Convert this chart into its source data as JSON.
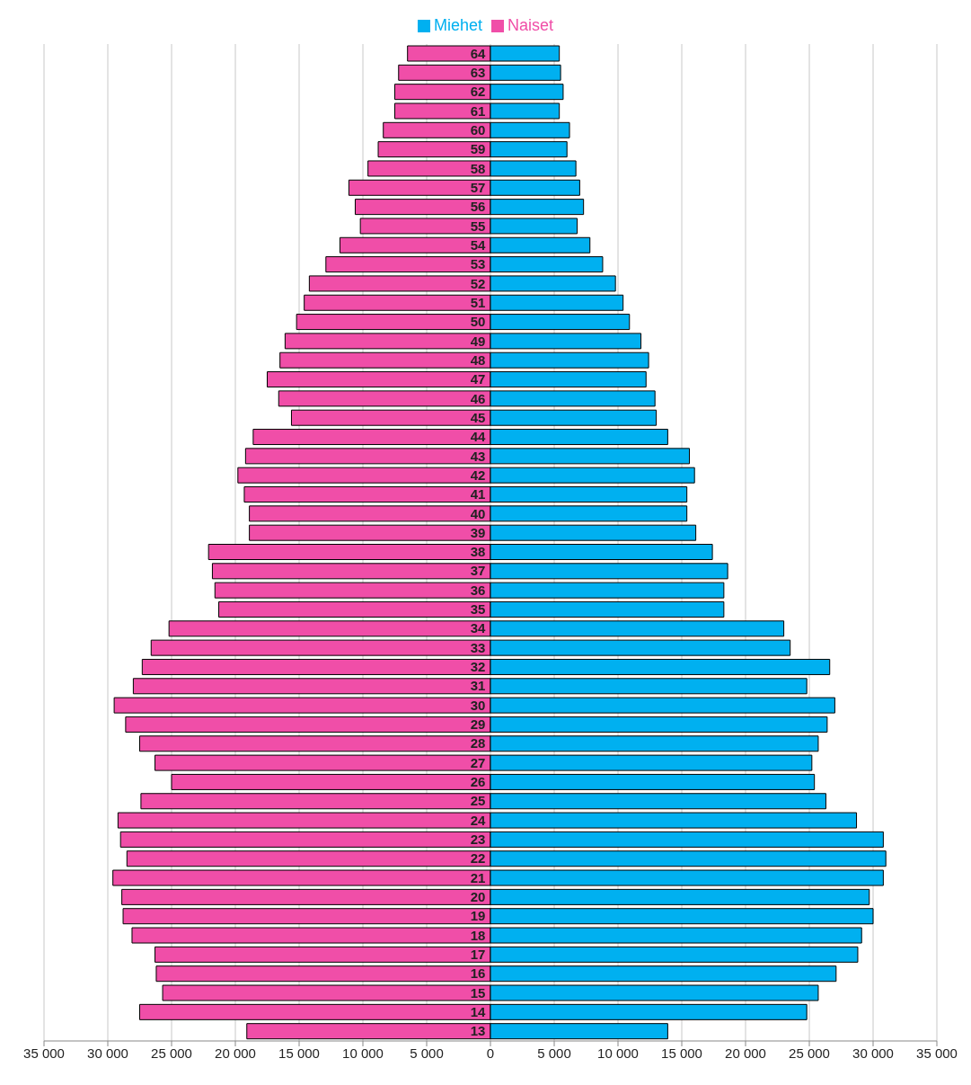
{
  "chart_data": {
    "type": "bar",
    "orientation": "horizontal",
    "stacked": true,
    "legend": "top",
    "grid": "x",
    "categories": [
      "64",
      "63",
      "62",
      "61",
      "60",
      "59",
      "58",
      "57",
      "56",
      "55",
      "54",
      "53",
      "52",
      "51",
      "50",
      "49",
      "48",
      "47",
      "46",
      "45",
      "44",
      "43",
      "42",
      "41",
      "40",
      "39",
      "38",
      "37",
      "36",
      "35",
      "34",
      "33",
      "32",
      "31",
      "30",
      "29",
      "28",
      "27",
      "26",
      "25",
      "24",
      "23",
      "22",
      "21",
      "20",
      "19",
      "18",
      "17",
      "16",
      "15",
      "14",
      "13"
    ],
    "series": [
      {
        "name": "Naiset",
        "color": "#f04ea8",
        "values": [
          -6500,
          -7200,
          -7500,
          -7500,
          -8400,
          -8800,
          -9600,
          -11100,
          -10600,
          -10200,
          -11800,
          -12900,
          -14200,
          -14600,
          -15200,
          -16100,
          -16500,
          -17500,
          -16600,
          -15600,
          -18600,
          -19200,
          -19800,
          -19300,
          -18900,
          -18900,
          -22100,
          -21800,
          -21600,
          -21300,
          -25200,
          -26600,
          -27300,
          -28000,
          -29500,
          -28600,
          -27500,
          -26300,
          -25000,
          -27400,
          -29200,
          -29000,
          -28500,
          -29600,
          -28900,
          -28800,
          -28100,
          -26300,
          -26200,
          -25700,
          -27500,
          -19100
        ]
      },
      {
        "name": "Miehet",
        "color": "#00b0f0",
        "values": [
          5400,
          5500,
          5700,
          5400,
          6200,
          6000,
          6700,
          7000,
          7300,
          6800,
          7800,
          8800,
          9800,
          10400,
          10900,
          11800,
          12400,
          12200,
          12900,
          13000,
          13900,
          15600,
          16000,
          15400,
          15400,
          16100,
          17400,
          18600,
          18300,
          18300,
          23000,
          23500,
          26600,
          24800,
          27000,
          26400,
          25700,
          25200,
          25400,
          26300,
          28700,
          30800,
          31000,
          30800,
          29700,
          30000,
          29100,
          28800,
          27100,
          25700,
          24800,
          13900
        ]
      }
    ],
    "xlim": [
      -35000,
      35000
    ],
    "xticks": [
      {
        "value": -35000,
        "label": "35 000"
      },
      {
        "value": -30000,
        "label": "30 000"
      },
      {
        "value": -25000,
        "label": "25 000"
      },
      {
        "value": -20000,
        "label": "20 000"
      },
      {
        "value": -15000,
        "label": "15 000"
      },
      {
        "value": -10000,
        "label": "10 000"
      },
      {
        "value": -5000,
        "label": "5 000"
      },
      0,
      {
        "value": 5000,
        "label": "5 000"
      },
      {
        "value": 10000,
        "label": "10 000"
      },
      {
        "value": 15000,
        "label": "15 000"
      },
      {
        "value": 20000,
        "label": "20 000"
      },
      {
        "value": 25000,
        "label": "25 000"
      },
      {
        "value": 30000,
        "label": "30 000"
      },
      {
        "value": 35000,
        "label": "35 000"
      }
    ]
  }
}
